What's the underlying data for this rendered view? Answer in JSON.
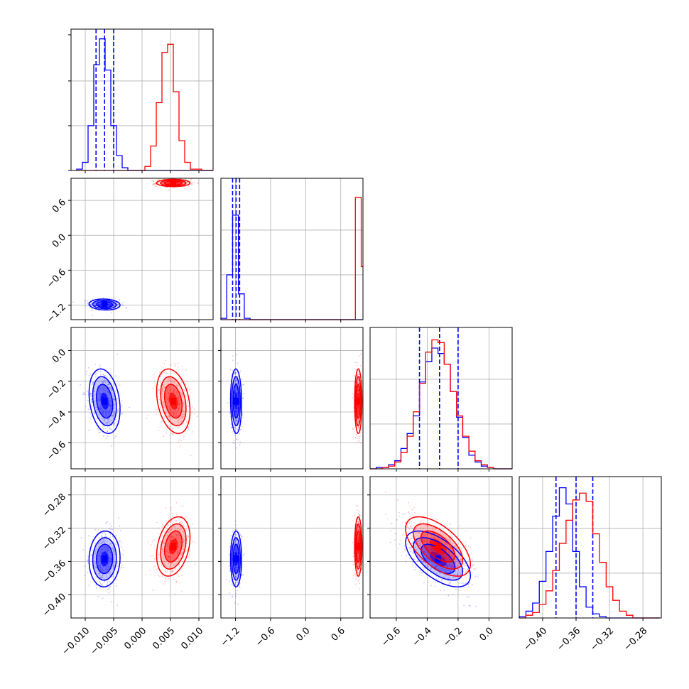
{
  "chart_data": {
    "type": "corner",
    "title": "",
    "series_colors": {
      "a": "#0000ff",
      "b": "#ff0000"
    },
    "grid": true,
    "parameters": [
      {
        "index": 0,
        "range": [
          -0.0125,
          0.0125
        ],
        "ticks": [
          -0.01,
          -0.005,
          0.0,
          0.005,
          0.01
        ],
        "tick_labels": [
          "−0.010",
          "−0.005",
          "0.000",
          "0.005",
          "0.010"
        ]
      },
      {
        "index": 1,
        "range": [
          -1.45,
          0.98
        ],
        "ticks": [
          -1.2,
          -0.6,
          0.0,
          0.6
        ],
        "tick_labels": [
          "−1.2",
          "−0.6",
          "0.0",
          "0.6"
        ]
      },
      {
        "index": 2,
        "range": [
          -0.77,
          0.15
        ],
        "ticks": [
          -0.6,
          -0.4,
          -0.2,
          0.0
        ],
        "tick_labels": [
          "−0.6",
          "−0.4",
          "−0.2",
          "0.0"
        ]
      },
      {
        "index": 3,
        "range": [
          -0.428,
          -0.258
        ],
        "ticks": [
          -0.4,
          -0.36,
          -0.32,
          -0.28
        ],
        "tick_labels": [
          "−0.40",
          "−0.36",
          "−0.32",
          "−0.28"
        ]
      }
    ],
    "histograms": [
      {
        "param": 0,
        "ymax": 1.0,
        "bins": [
          -0.0115,
          -0.0105,
          -0.0095,
          -0.0085,
          -0.0075,
          -0.0065,
          -0.0055,
          -0.0045,
          -0.0035,
          -0.0025,
          -0.0015,
          -0.0005,
          0.0005,
          0.0015,
          0.0025,
          0.0035,
          0.0045,
          0.0055,
          0.0065,
          0.0075,
          0.0085,
          0.0095,
          0.0105,
          0.0115,
          0.0125
        ],
        "series": [
          {
            "name": "",
            "color": "#0000ff",
            "values": [
              0.01,
              0.06,
              0.33,
              0.78,
              0.97,
              0.74,
              0.33,
              0.11,
              0.02,
              0.0,
              0.0,
              0.0,
              0.0,
              0.0,
              0.0,
              0.0,
              0.0,
              0.0,
              0.0,
              0.0,
              0.0,
              0.0,
              0.0,
              0.0
            ],
            "quantiles": [
              -0.0081,
              -0.0066,
              -0.005
            ]
          },
          {
            "name": "",
            "color": "#ff0000",
            "values": [
              0.0,
              0.0,
              0.0,
              0.0,
              0.0,
              0.0,
              0.0,
              0.0,
              0.0,
              0.0,
              0.0,
              0.0,
              0.03,
              0.18,
              0.5,
              0.87,
              0.93,
              0.58,
              0.22,
              0.06,
              0.01,
              0.01,
              0.0,
              0.0
            ]
          }
        ]
      },
      {
        "param": 1,
        "ymax": 1.0,
        "bins": [
          -1.45,
          -1.35,
          -1.25,
          -1.15,
          -1.05,
          -0.95,
          -0.85,
          -0.75,
          -0.65,
          -0.55,
          -0.45,
          -0.35,
          -0.25,
          -0.15,
          -0.05,
          0.05,
          0.15,
          0.25,
          0.35,
          0.45,
          0.55,
          0.65,
          0.75,
          0.85,
          0.95,
          0.98
        ],
        "series": [
          {
            "name": "",
            "color": "#0000ff",
            "values": [
              0.01,
              0.33,
              0.77,
              0.19,
              0.01,
              0.0,
              0.0,
              0.0,
              0.0,
              0.0,
              0.0,
              0.0,
              0.0,
              0.0,
              0.0,
              0.0,
              0.0,
              0.0,
              0.0,
              0.0,
              0.0,
              0.0,
              0.0,
              0.0,
              0.0
            ],
            "quantiles": [
              -1.25,
              -1.19,
              -1.13
            ]
          },
          {
            "name": "",
            "color": "#ff0000",
            "values": [
              0.0,
              0.0,
              0.0,
              0.0,
              0.0,
              0.0,
              0.0,
              0.0,
              0.0,
              0.0,
              0.0,
              0.0,
              0.0,
              0.0,
              0.0,
              0.0,
              0.0,
              0.0,
              0.0,
              0.0,
              0.0,
              0.0,
              0.0,
              0.9,
              0.39
            ]
          }
        ]
      },
      {
        "param": 2,
        "ymax": 1.0,
        "bins": [
          -0.77,
          -0.73,
          -0.69,
          -0.65,
          -0.61,
          -0.57,
          -0.53,
          -0.49,
          -0.45,
          -0.41,
          -0.37,
          -0.33,
          -0.29,
          -0.25,
          -0.21,
          -0.17,
          -0.13,
          -0.09,
          -0.05,
          -0.01,
          0.03,
          0.07,
          0.11,
          0.15
        ],
        "series": [
          {
            "name": "",
            "color": "#0000ff",
            "values": [
              0.0,
              0.01,
              0.01,
              0.03,
              0.06,
              0.15,
              0.26,
              0.39,
              0.64,
              0.79,
              0.89,
              0.85,
              0.77,
              0.57,
              0.38,
              0.23,
              0.1,
              0.05,
              0.02,
              0.01,
              0.0,
              0.0,
              0.0
            ],
            "quantiles": [
              -0.45,
              -0.32,
              -0.2
            ]
          },
          {
            "name": "",
            "color": "#ff0000",
            "values": [
              0.0,
              0.0,
              0.01,
              0.02,
              0.05,
              0.12,
              0.24,
              0.42,
              0.63,
              0.86,
              0.95,
              0.93,
              0.77,
              0.57,
              0.39,
              0.24,
              0.13,
              0.06,
              0.03,
              0.01,
              0.0,
              0.0,
              0.0
            ]
          }
        ]
      },
      {
        "param": 3,
        "ymax": 1.0,
        "bins": [
          -0.428,
          -0.42,
          -0.412,
          -0.404,
          -0.396,
          -0.388,
          -0.38,
          -0.372,
          -0.364,
          -0.356,
          -0.348,
          -0.34,
          -0.332,
          -0.324,
          -0.316,
          -0.308,
          -0.3,
          -0.292,
          -0.284,
          -0.276,
          -0.268,
          -0.26
        ],
        "series": [
          {
            "name": "",
            "color": "#0000ff",
            "values": [
              0.01,
              0.05,
              0.11,
              0.27,
              0.49,
              0.75,
              0.96,
              0.84,
              0.49,
              0.23,
              0.08,
              0.03,
              0.01,
              0.0,
              0.0,
              0.0,
              0.0,
              0.0,
              0.0,
              0.0,
              0.0
            ],
            "quantiles": [
              -0.384,
              -0.36,
              -0.34
            ]
          },
          {
            "name": "",
            "color": "#ff0000",
            "values": [
              0.0,
              0.02,
              0.04,
              0.1,
              0.2,
              0.35,
              0.55,
              0.72,
              0.87,
              0.92,
              0.86,
              0.62,
              0.41,
              0.23,
              0.13,
              0.05,
              0.02,
              0.0,
              0.0,
              0.0,
              0.0
            ]
          }
        ]
      }
    ],
    "joint_distributions": [
      {
        "x_param": 0,
        "y_param": 1,
        "series": [
          {
            "color": "#0000ff",
            "mean": [
              -0.0066,
              -1.19
            ],
            "sd": [
              0.0013,
              0.045
            ],
            "corr": -0.1
          },
          {
            "color": "#ff0000",
            "mean": [
              0.0055,
              0.9
            ],
            "sd": [
              0.0014,
              0.03
            ],
            "corr": 0.0
          }
        ]
      },
      {
        "x_param": 0,
        "y_param": 2,
        "series": [
          {
            "color": "#0000ff",
            "mean": [
              -0.0066,
              -0.33
            ],
            "sd": [
              0.0013,
              0.1
            ],
            "corr": -0.25
          },
          {
            "color": "#ff0000",
            "mean": [
              0.0055,
              -0.33
            ],
            "sd": [
              0.0014,
              0.1
            ],
            "corr": -0.3
          }
        ]
      },
      {
        "x_param": 1,
        "y_param": 2,
        "series": [
          {
            "color": "#0000ff",
            "mean": [
              -1.19,
              -0.33
            ],
            "sd": [
              0.045,
              0.1
            ],
            "corr": -0.05
          },
          {
            "color": "#ff0000",
            "mean": [
              0.9,
              -0.33
            ],
            "sd": [
              0.03,
              0.1
            ],
            "corr": 0.0
          }
        ]
      },
      {
        "x_param": 0,
        "y_param": 3,
        "series": [
          {
            "color": "#0000ff",
            "mean": [
              -0.0066,
              -0.357
            ],
            "sd": [
              0.0013,
              0.016
            ],
            "corr": 0.05
          },
          {
            "color": "#ff0000",
            "mean": [
              0.0055,
              -0.342
            ],
            "sd": [
              0.0014,
              0.017
            ],
            "corr": 0.3
          }
        ]
      },
      {
        "x_param": 1,
        "y_param": 3,
        "series": [
          {
            "color": "#0000ff",
            "mean": [
              -1.19,
              -0.357
            ],
            "sd": [
              0.045,
              0.016
            ],
            "corr": 0.0
          },
          {
            "color": "#ff0000",
            "mean": [
              0.9,
              -0.342
            ],
            "sd": [
              0.03,
              0.017
            ],
            "corr": 0.0
          }
        ]
      },
      {
        "x_param": 2,
        "y_param": 3,
        "series": [
          {
            "color": "#0000ff",
            "mean": [
              -0.33,
              -0.357
            ],
            "sd": [
              0.1,
              0.016
            ],
            "corr": -0.6
          },
          {
            "color": "#ff0000",
            "mean": [
              -0.33,
              -0.342
            ],
            "sd": [
              0.1,
              0.017
            ],
            "corr": -0.6
          }
        ]
      }
    ]
  }
}
